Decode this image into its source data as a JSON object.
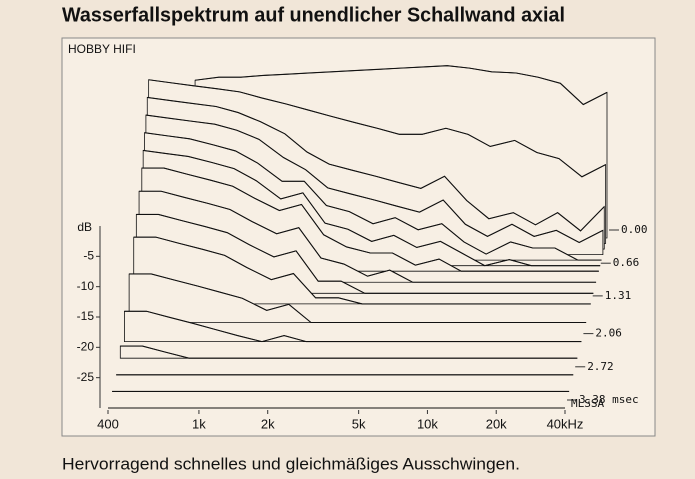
{
  "title": "Wasserfallspektrum auf unendlicher Schallwand axial",
  "caption": "Hervorragend schnelles und gleichmäßiges Ausschwingen.",
  "chart_data": {
    "type": "waterfall",
    "brand": "HOBBY HIFI",
    "ylabel": "dB",
    "note": "MLSSA",
    "xlog": true,
    "x": [
      400,
      500,
      630,
      800,
      1000,
      1250,
      1600,
      2000,
      2500,
      3150,
      4000,
      5000,
      6300,
      8000,
      10000,
      12500,
      16000,
      20000,
      25000,
      31500,
      40000
    ],
    "xlim": [
      400,
      40000
    ],
    "xticks": [
      400,
      {
        "value": 1000,
        "label": "1k"
      },
      {
        "value": 2000,
        "label": "2k"
      },
      {
        "value": 5000,
        "label": "5k"
      },
      {
        "value": 10000,
        "label": "10k"
      },
      {
        "value": 20000,
        "label": "20k"
      },
      {
        "value": 40000,
        "label": "40kHz"
      }
    ],
    "ylim": [
      -30,
      0
    ],
    "yticks": [
      -5,
      -10,
      -15,
      -20,
      -25
    ],
    "zlim": [
      0,
      3.38
    ],
    "zticks": [
      {
        "value": 0,
        "label": "0.00"
      },
      0.66,
      1.31,
      2.06,
      2.72,
      {
        "value": 3.38,
        "label": "3.38 msec"
      }
    ],
    "color": "#111111",
    "slices": [
      {
        "time": 0,
        "values": [
          null,
          null,
          -4,
          -3.5,
          -3.5,
          -3.2,
          -3,
          -2.8,
          -2.6,
          -2.4,
          -2.2,
          -2,
          -1.8,
          -1.6,
          -2,
          -2.6,
          -2.8,
          -3.5,
          -4.5,
          -8,
          -6
        ]
      },
      {
        "time": 0.11,
        "values": [
          -3,
          -3.5,
          -4,
          -4.5,
          -5,
          -6,
          -7,
          -8,
          -9,
          -10,
          -11,
          -12,
          -12,
          -11,
          -12,
          -14,
          -13,
          -15,
          -16,
          -19,
          -17
        ]
      },
      {
        "time": 0.22,
        "values": [
          -5,
          -5.5,
          -6,
          -6.5,
          -7.5,
          -9,
          -11,
          -14,
          -16,
          -17,
          -18,
          -19,
          -20,
          -18,
          -22,
          -25,
          -24,
          -26,
          -24,
          -27,
          -23
        ]
      },
      {
        "time": 0.33,
        "values": [
          -7,
          -7.5,
          -8,
          -8.5,
          -9.5,
          -11,
          -14,
          -16,
          -19,
          -20,
          -21,
          -22,
          -23,
          -21,
          -25,
          -27,
          -25,
          -27,
          -26,
          -28,
          -26
        ]
      },
      {
        "time": 0.44,
        "values": [
          -9,
          -9.5,
          -10,
          -11,
          -12,
          -14,
          -17,
          -17,
          -21,
          -22,
          -24,
          -23,
          -25,
          -24,
          -27,
          -29,
          -27,
          -28,
          -28,
          -30,
          -30
        ]
      },
      {
        "time": 0.55,
        "values": [
          -11,
          -11.5,
          -12,
          -13,
          -14,
          -16,
          -19,
          -18,
          -23,
          -24,
          -26,
          -25,
          -27,
          -26,
          -28,
          -30,
          -29,
          -30,
          -30,
          -30,
          -30
        ]
      },
      {
        "time": 0.66,
        "values": [
          -13,
          -13,
          -14,
          -15,
          -16,
          -18,
          -20,
          -19,
          -24,
          -26,
          -27,
          -27,
          -29,
          -28,
          -30,
          -30,
          -30,
          -30,
          -30,
          -30,
          -30
        ]
      },
      {
        "time": 0.88,
        "values": [
          -15,
          -15,
          -16,
          -17,
          -18,
          -20,
          -22,
          -21,
          -26,
          -27,
          -29,
          -28,
          -30,
          -30,
          -30,
          -30,
          -30,
          -30,
          -30,
          -30,
          -30
        ]
      },
      {
        "time": 1.1,
        "values": [
          -17,
          -17,
          -18,
          -19,
          -20,
          -22,
          -24,
          -23,
          -28,
          -28,
          -30,
          -30,
          -30,
          -30,
          -30,
          -30,
          -30,
          -30,
          -30,
          -30,
          -30
        ]
      },
      {
        "time": 1.31,
        "values": [
          -19,
          -19,
          -20,
          -21,
          -22,
          -24,
          -26,
          -25,
          -29,
          -29,
          -30,
          -30,
          -30,
          -30,
          -30,
          -30,
          -30,
          -30,
          -30,
          -30,
          -30
        ]
      },
      {
        "time": 1.68,
        "values": [
          -22,
          -22,
          -23,
          -24,
          -25,
          -26,
          -28,
          -27,
          -30,
          -30,
          -30,
          -30,
          -30,
          -30,
          -30,
          -30,
          -30,
          -30,
          -30,
          -30,
          -30
        ]
      },
      {
        "time": 2.06,
        "values": [
          -25,
          -25,
          -26,
          -27,
          -28,
          -29,
          -30,
          -29,
          -30,
          -30,
          -30,
          -30,
          -30,
          -30,
          -30,
          -30,
          -30,
          -30,
          -30,
          -30,
          -30
        ]
      },
      {
        "time": 2.39,
        "values": [
          -28,
          -28,
          -29,
          -30,
          -30,
          -30,
          -30,
          -30,
          -30,
          -30,
          -30,
          -30,
          -30,
          -30,
          -30,
          -30,
          -30,
          -30,
          -30,
          -30,
          -30
        ]
      },
      {
        "time": 2.72,
        "values": [
          -30,
          -30,
          -30,
          -30,
          -30,
          -30,
          -30,
          -30,
          -30,
          -30,
          -30,
          -30,
          -30,
          -30,
          -30,
          -30,
          -30,
          -30,
          -30,
          -30,
          -30
        ]
      },
      {
        "time": 3.05,
        "values": [
          -30,
          -30,
          -30,
          -30,
          -30,
          -30,
          -30,
          -30,
          -30,
          -30,
          -30,
          -30,
          -30,
          -30,
          -30,
          -30,
          -30,
          -30,
          -30,
          -30,
          -30
        ]
      },
      {
        "time": 3.38,
        "values": [
          -30,
          -30,
          -30,
          -30,
          -30,
          -30,
          -30,
          -30,
          -30,
          -30,
          -30,
          -30,
          -30,
          -30,
          -30,
          -30,
          -30,
          -30,
          -30,
          -30,
          -30
        ]
      }
    ]
  }
}
